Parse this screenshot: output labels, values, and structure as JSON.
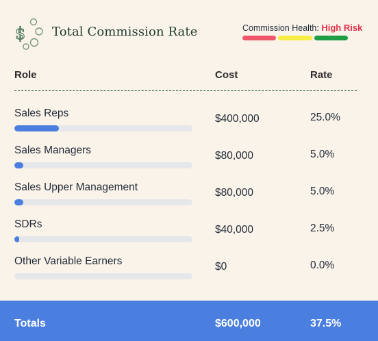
{
  "header": {
    "title": "Total Commission Rate",
    "health_label": "Commission Health:",
    "health_value": "High Risk",
    "health_colors": [
      "#f0566a",
      "#f6ee45",
      "#1f9e47"
    ]
  },
  "columns": {
    "role": "Role",
    "cost": "Cost",
    "rate": "Rate"
  },
  "rows": [
    {
      "role": "Sales Reps",
      "cost": "$400,000",
      "rate": "25.0%",
      "fill": 0.25
    },
    {
      "role": "Sales Managers",
      "cost": "$80,000",
      "rate": "5.0%",
      "fill": 0.05
    },
    {
      "role": "Sales Upper Management",
      "cost": "$80,000",
      "rate": "5.0%",
      "fill": 0.05
    },
    {
      "role": "SDRs",
      "cost": "$40,000",
      "rate": "2.5%",
      "fill": 0.025
    },
    {
      "role": "Other Variable Earners",
      "cost": "$0",
      "rate": "0.0%",
      "fill": 0.0
    }
  ],
  "totals": {
    "label": "Totals",
    "cost": "$600,000",
    "rate": "37.5%"
  },
  "colors": {
    "accent": "#4a7fe0",
    "track": "#e6e7ea",
    "risk": "#e0314b"
  }
}
